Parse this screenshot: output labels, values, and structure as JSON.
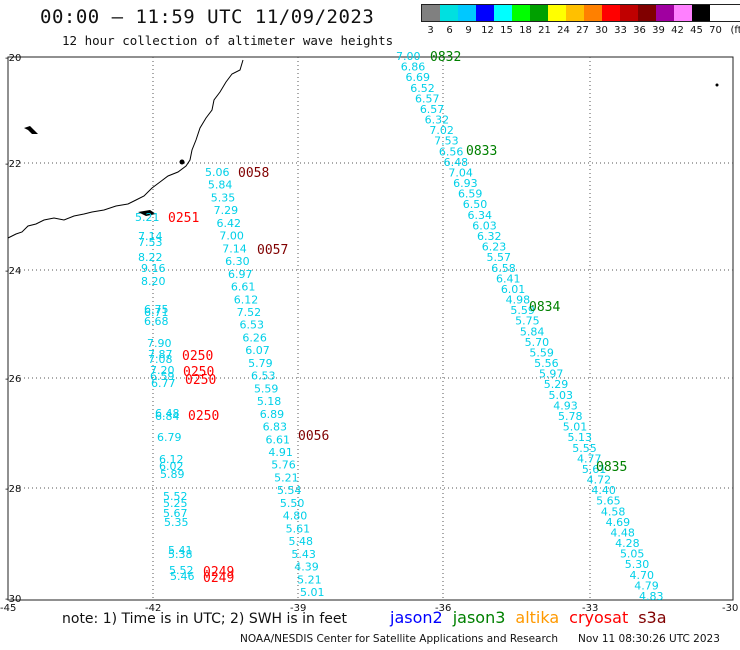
{
  "header": {
    "title": "00:00 – 11:59 UTC 11/09/2023",
    "subtitle": "12 hour collection of altimeter wave heights"
  },
  "legend": {
    "labels": [
      "3",
      "6",
      "9",
      "12",
      "15",
      "18",
      "21",
      "24",
      "27",
      "30",
      "33",
      "36",
      "39",
      "42",
      "45",
      "70",
      "(ft)"
    ],
    "colors": [
      "#808080",
      "#00e0e0",
      "#00c8ff",
      "#0000ff",
      "#00ffff",
      "#00ff00",
      "#00a000",
      "#ffff00",
      "#ffc000",
      "#ff8000",
      "#ff0000",
      "#c00000",
      "#800000",
      "#a000a0",
      "#ff80ff",
      "#000000"
    ]
  },
  "axes": {
    "lat_labels": [
      "-20",
      "-22",
      "-24",
      "-26",
      "-28",
      "-30"
    ],
    "lon_labels": [
      "-45",
      "-42",
      "-39",
      "-36",
      "-33",
      "-30"
    ]
  },
  "tracks": [
    {
      "time": "0832",
      "time_color": "#008000",
      "values": [
        "7.00",
        "6.86",
        "6.69",
        "6.52",
        "6.57",
        "6.57",
        "6.32",
        "7.02",
        "7.53",
        "6.56",
        "6.48",
        "7.04",
        "6.93",
        "6.59",
        "6.50",
        "6.34",
        "6.03",
        "6.32",
        "6.23",
        "5.57",
        "6.58",
        "6.41",
        "6.01",
        "4.98",
        "5.59",
        "5.75",
        "5.84",
        "5.70",
        "5.59",
        "5.56",
        "5.97",
        "5.29",
        "5.03",
        "4.93",
        "5.78",
        "5.01",
        "5.13",
        "5.55",
        "4.77",
        "5.61",
        "4.72",
        "4.40",
        "5.65",
        "4.58",
        "4.69",
        "4.48",
        "4.28",
        "5.05",
        "5.30",
        "4.70",
        "4.79",
        "4.83"
      ]
    },
    {
      "time": "0058",
      "time_color": "#800000",
      "values": [
        "5.06",
        "5.84",
        "5.35",
        "7.29",
        "6.42",
        "7.00",
        "7.14",
        "6.30",
        "6.97",
        "6.61",
        "6.12",
        "7.52",
        "6.53",
        "6.26",
        "6.07",
        "5.79",
        "6.53",
        "5.59",
        "5.18",
        "6.89",
        "6.83",
        "6.61",
        "4.91",
        "5.76",
        "5.21",
        "5.54",
        "5.50",
        "4.80",
        "5.61",
        "5.48",
        "5.43",
        "4.39",
        "5.21",
        "5.01"
      ]
    },
    {
      "time": "0251",
      "time_color": "#ff0000",
      "values": [
        "5.21",
        "7.14",
        "7.53",
        "8.22",
        "9.16",
        "8.20",
        "6.75",
        "6.71",
        "6.68",
        "7.90",
        "7.87",
        "7.08",
        "7.20",
        "6.59",
        "6.77",
        "6.48",
        "6.84",
        "6.79",
        "6.12",
        "6.02",
        "5.89",
        "5.52",
        "5.25",
        "5.67",
        "5.35",
        "5.41",
        "5.38",
        "5.52",
        "5.46"
      ]
    }
  ],
  "time_labels": [
    {
      "text": "0832",
      "color": "#008000"
    },
    {
      "text": "0833",
      "color": "#008000"
    },
    {
      "text": "0834",
      "color": "#008000"
    },
    {
      "text": "0835",
      "color": "#008000"
    },
    {
      "text": "0058",
      "color": "#800000"
    },
    {
      "text": "0057",
      "color": "#800000"
    },
    {
      "text": "0056",
      "color": "#800000"
    },
    {
      "text": "0251",
      "color": "#ff0000"
    },
    {
      "text": "0250",
      "color": "#ff0000"
    },
    {
      "text": "0250",
      "color": "#ff0000"
    },
    {
      "text": "0250",
      "color": "#ff0000"
    },
    {
      "text": "0250",
      "color": "#ff0000"
    },
    {
      "text": "0249",
      "color": "#ff0000"
    },
    {
      "text": "0249",
      "color": "#ff0000"
    }
  ],
  "footer": {
    "note": "note:  1) Time is in UTC;  2) SWH is in feet",
    "satellites": [
      {
        "name": "jason2",
        "color": "#0000ff"
      },
      {
        "name": "jason3",
        "color": "#008000"
      },
      {
        "name": "altika",
        "color": "#ff9900"
      },
      {
        "name": "cryosat",
        "color": "#ff0000"
      },
      {
        "name": "s3a",
        "color": "#800000"
      }
    ],
    "credit": "NOAA/NESDIS Center for Satellite Applications and Research",
    "timestamp": "Nov 11 08:30:26 UTC 2023"
  },
  "colors": {
    "value_text": "#00d0e8",
    "grid": "#555555"
  }
}
